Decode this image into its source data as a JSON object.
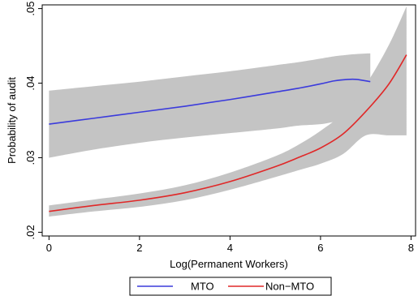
{
  "chart_data": {
    "type": "line",
    "xlabel": "Log(Permanent Workers)",
    "ylabel": "Probability of audit",
    "xlim": [
      0,
      8
    ],
    "ylim": [
      0.02,
      0.05
    ],
    "xticks": [
      0,
      2,
      4,
      6,
      8
    ],
    "xtick_labels": [
      "0",
      "2",
      "4",
      "6",
      "8"
    ],
    "yticks": [
      0.02,
      0.03,
      0.04,
      0.05
    ],
    "ytick_labels": [
      ".02",
      ".03",
      ".04",
      ".05"
    ],
    "grid": false,
    "legend_position": "bottom",
    "series": [
      {
        "name": "MTO",
        "color": "#3b3bdc",
        "x": [
          0,
          1,
          2,
          3,
          4,
          5,
          5.5,
          6,
          6.3,
          6.6,
          6.8,
          7.1
        ],
        "y": [
          0.0345,
          0.0353,
          0.0361,
          0.0369,
          0.0378,
          0.0388,
          0.0393,
          0.0399,
          0.0403,
          0.0405,
          0.0405,
          0.0402
        ],
        "ci_upper": [
          0.039,
          0.0396,
          0.0402,
          0.0409,
          0.0416,
          0.0424,
          0.0428,
          0.0433,
          0.0436,
          0.0438,
          0.0439,
          0.044
        ],
        "ci_lower": [
          0.03,
          0.0311,
          0.032,
          0.0327,
          0.0333,
          0.0339,
          0.0343,
          0.0345,
          0.0348,
          0.035,
          0.0351,
          0.0352
        ]
      },
      {
        "name": "Non−MTO",
        "color": "#e02828",
        "x": [
          0,
          1,
          2,
          3,
          4,
          5,
          5.5,
          6,
          6.5,
          7,
          7.5,
          7.9
        ],
        "y": [
          0.0228,
          0.0236,
          0.0243,
          0.0253,
          0.0268,
          0.0288,
          0.03,
          0.0313,
          0.0332,
          0.0362,
          0.0398,
          0.0438
        ],
        "ci_upper": [
          0.0236,
          0.0244,
          0.0252,
          0.0263,
          0.028,
          0.0302,
          0.0317,
          0.0336,
          0.036,
          0.0398,
          0.045,
          0.0503
        ],
        "ci_lower": [
          0.0221,
          0.0228,
          0.0234,
          0.0243,
          0.0257,
          0.0274,
          0.0283,
          0.0292,
          0.0305,
          0.033,
          0.033,
          0.033
        ]
      }
    ]
  }
}
